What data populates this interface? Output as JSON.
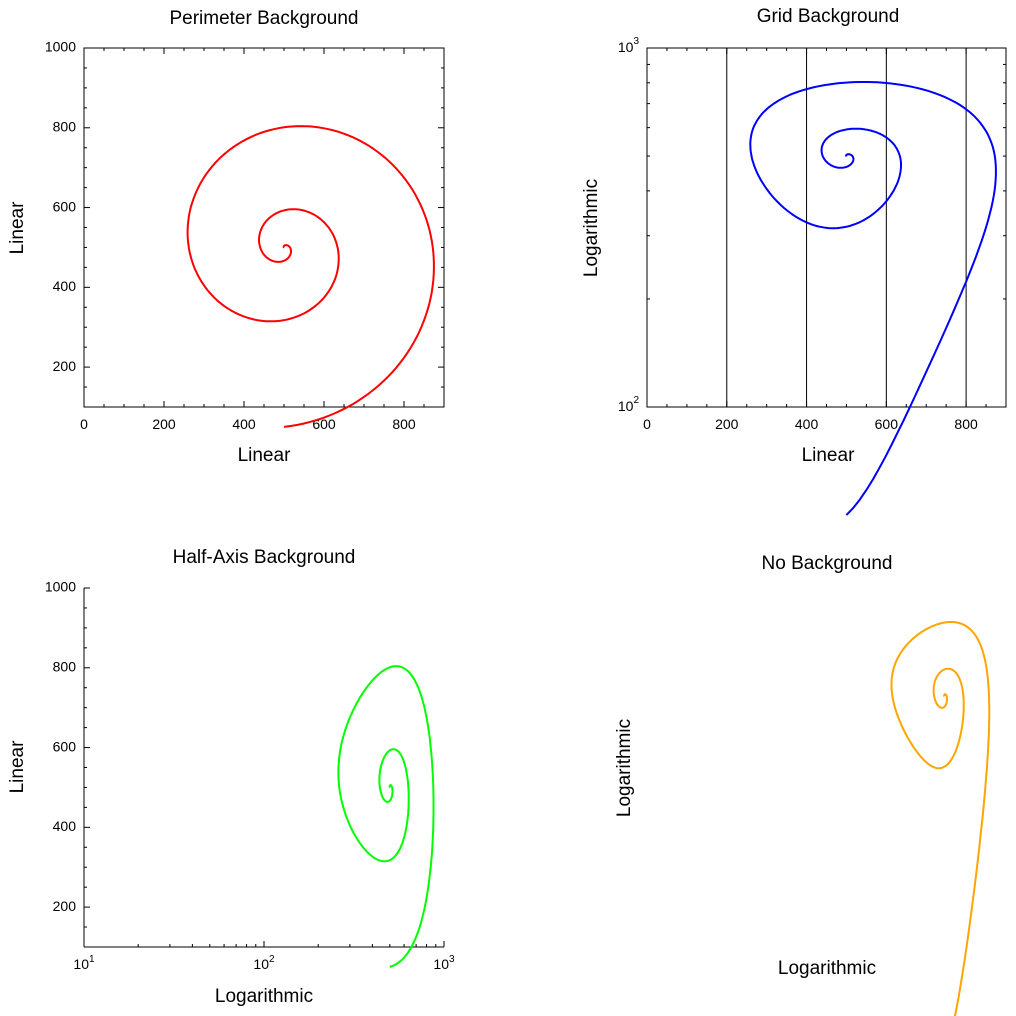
{
  "chart_data": [
    {
      "type": "line",
      "title": "Perimeter Background",
      "xlabel": "Linear",
      "ylabel": "Linear",
      "xscale": "linear",
      "yscale": "linear",
      "xlim": [
        0,
        900
      ],
      "ylim": [
        100,
        1000
      ],
      "xticks": [
        0,
        200,
        400,
        600,
        800
      ],
      "xtick_labels": [
        "0",
        "200",
        "400",
        "600",
        "800"
      ],
      "yticks": [
        200,
        400,
        600,
        800,
        1000
      ],
      "ytick_labels": [
        "200",
        "400",
        "600",
        "800",
        "1000"
      ],
      "background": "perimeter",
      "grid": false,
      "line_color": "#ff0000",
      "series": [
        {
          "x": [],
          "y": []
        }
      ]
    },
    {
      "type": "line",
      "title": "Grid Background",
      "xlabel": "Linear",
      "ylabel": "Logarithmic",
      "xscale": "linear",
      "yscale": "log",
      "xlim": [
        0,
        900
      ],
      "ylim": [
        100,
        1000
      ],
      "xticks": [
        0,
        200,
        400,
        600,
        800
      ],
      "xtick_labels": [
        "0",
        "200",
        "400",
        "600",
        "800"
      ],
      "yticks": [
        100,
        1000
      ],
      "ytick_labels": [
        {
          "base": "10",
          "exp": "2"
        },
        {
          "base": "10",
          "exp": "3"
        }
      ],
      "background": "grid",
      "grid": true,
      "line_color": "#0000ff",
      "series": [
        {
          "x": [],
          "y": []
        }
      ]
    },
    {
      "type": "line",
      "title": "Half-Axis Background",
      "xlabel": "Logarithmic",
      "ylabel": "Linear",
      "xscale": "log",
      "yscale": "linear",
      "xlim": [
        10,
        1000
      ],
      "ylim": [
        100,
        1000
      ],
      "xticks": [
        10,
        100,
        1000
      ],
      "xtick_labels": [
        {
          "base": "10",
          "exp": "1"
        },
        {
          "base": "10",
          "exp": "2"
        },
        {
          "base": "10",
          "exp": "3"
        }
      ],
      "yticks": [
        200,
        400,
        600,
        800,
        1000
      ],
      "ytick_labels": [
        "200",
        "400",
        "600",
        "800",
        "1000"
      ],
      "background": "half-axis",
      "grid": false,
      "line_color": "#00ff00",
      "series": [
        {
          "x": [],
          "y": []
        }
      ]
    },
    {
      "type": "line",
      "title": "No Background",
      "xlabel": "Logarithmic",
      "ylabel": "Logarithmic",
      "xscale": "log",
      "yscale": "log",
      "xlim": [
        10,
        1000
      ],
      "ylim": [
        100,
        1000
      ],
      "xticks": [],
      "yticks": [],
      "background": "none",
      "grid": false,
      "line_color": "#ffa500",
      "series": [
        {
          "x": [],
          "y": []
        }
      ]
    }
  ]
}
